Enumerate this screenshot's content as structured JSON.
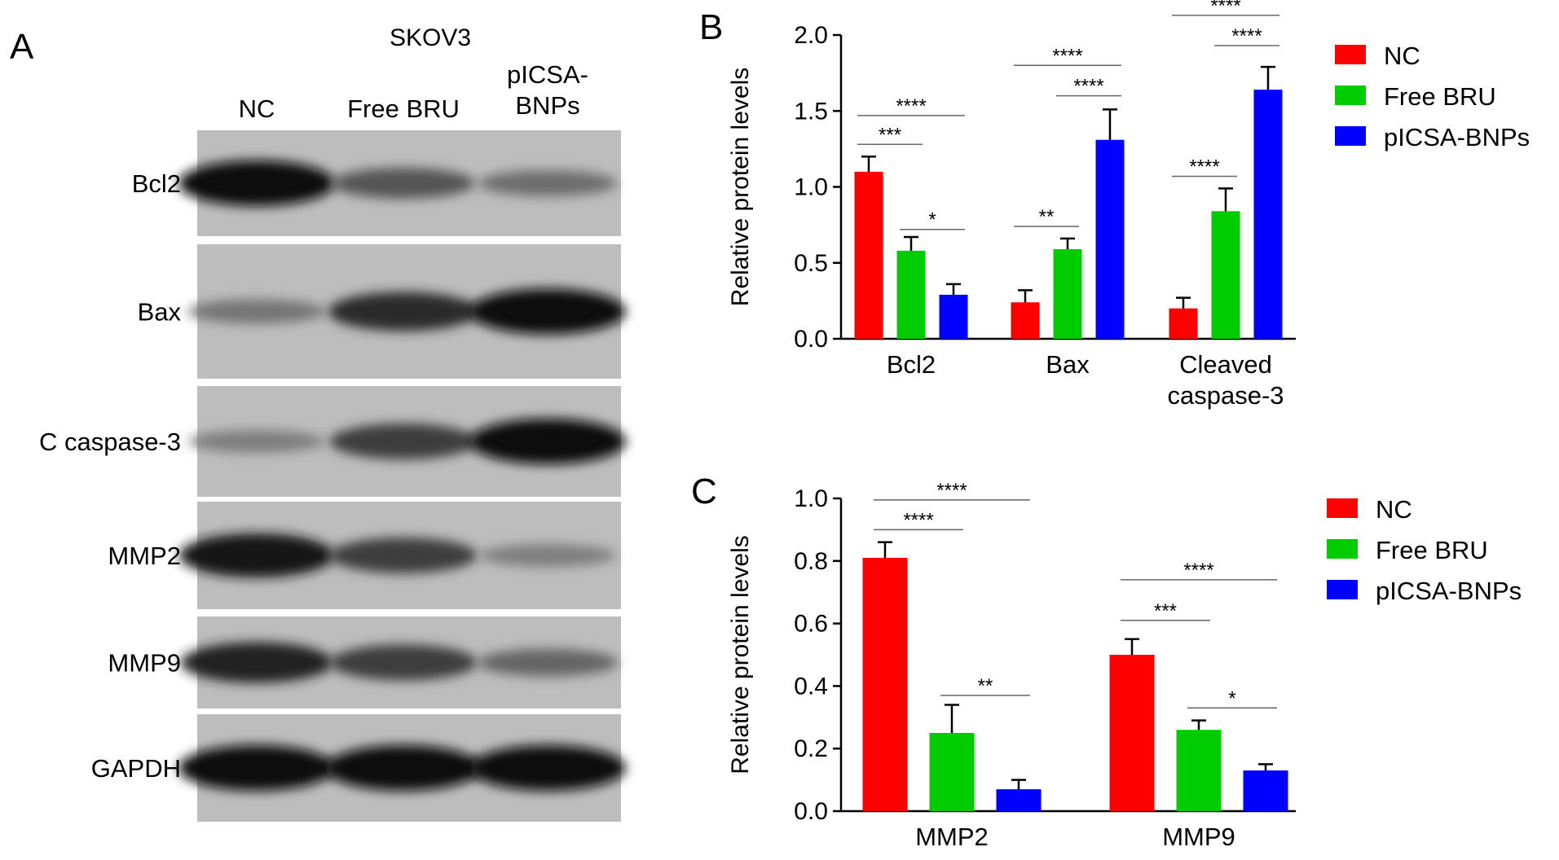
{
  "panel_a": {
    "letter": "A",
    "cell_line": "SKOV3",
    "lanes": [
      "NC",
      "Free BRU",
      "pICSA-\nBNPs"
    ],
    "rows": [
      {
        "label": "Bcl2",
        "intensity": [
          1.0,
          0.55,
          0.4
        ]
      },
      {
        "label": "Bax",
        "intensity": [
          0.35,
          0.8,
          1.0
        ]
      },
      {
        "label": "C caspase-3",
        "intensity": [
          0.3,
          0.7,
          1.0
        ]
      },
      {
        "label": "MMP2",
        "intensity": [
          0.95,
          0.7,
          0.3
        ]
      },
      {
        "label": "MMP9",
        "intensity": [
          0.85,
          0.7,
          0.45
        ]
      },
      {
        "label": "GAPDH",
        "intensity": [
          1.0,
          1.0,
          1.0
        ]
      }
    ]
  },
  "colors": {
    "nc": "#ff0000",
    "free_bru": "#00cc00",
    "picsa": "#0000ff"
  },
  "chart_data": [
    {
      "type": "bar",
      "panel": "B",
      "categories": [
        "Bcl2",
        "Bax",
        "Cleaved\ncaspase-3"
      ],
      "series": [
        {
          "name": "NC",
          "values": [
            1.1,
            0.24,
            0.2
          ],
          "errors": [
            0.1,
            0.08,
            0.07
          ]
        },
        {
          "name": "Free BRU",
          "values": [
            0.58,
            0.59,
            0.84
          ],
          "errors": [
            0.09,
            0.07,
            0.15
          ]
        },
        {
          "name": "pICSA-BNPs",
          "values": [
            0.29,
            1.31,
            1.64
          ],
          "errors": [
            0.07,
            0.2,
            0.15
          ]
        }
      ],
      "ylabel": "Relative protein levels",
      "ylim": [
        0,
        2.0
      ],
      "yticks": [
        "0.0",
        "0.5",
        "1.0",
        "1.5",
        "2.0"
      ],
      "legend": "right",
      "significance": [
        {
          "category": 0,
          "from": 0,
          "to": 2,
          "label": "****",
          "y": 1.47
        },
        {
          "category": 0,
          "from": 0,
          "to": 1,
          "label": "***",
          "y": 1.28
        },
        {
          "category": 0,
          "from": 1,
          "to": 2,
          "label": "*",
          "y": 0.72
        },
        {
          "category": 1,
          "from": 0,
          "to": 2,
          "label": "****",
          "y": 1.8
        },
        {
          "category": 1,
          "from": 1,
          "to": 2,
          "label": "****",
          "y": 1.6
        },
        {
          "category": 1,
          "from": 0,
          "to": 1,
          "label": "**",
          "y": 0.74
        },
        {
          "category": 2,
          "from": 0,
          "to": 2,
          "label": "****",
          "y": 2.13
        },
        {
          "category": 2,
          "from": 1,
          "to": 2,
          "label": "****",
          "y": 1.93
        },
        {
          "category": 2,
          "from": 0,
          "to": 1,
          "label": "****",
          "y": 1.07
        }
      ]
    },
    {
      "type": "bar",
      "panel": "C",
      "categories": [
        "MMP2",
        "MMP9"
      ],
      "series": [
        {
          "name": "NC",
          "values": [
            0.81,
            0.5
          ],
          "errors": [
            0.05,
            0.05
          ]
        },
        {
          "name": "Free BRU",
          "values": [
            0.25,
            0.26
          ],
          "errors": [
            0.09,
            0.03
          ]
        },
        {
          "name": "pICSA-BNPs",
          "values": [
            0.07,
            0.13
          ],
          "errors": [
            0.03,
            0.02
          ]
        }
      ],
      "ylabel": "Relative protein levels",
      "ylim": [
        0,
        1.0
      ],
      "yticks": [
        "0.0",
        "0.2",
        "0.4",
        "0.6",
        "0.8",
        "1.0"
      ],
      "legend": "right",
      "significance": [
        {
          "category": 0,
          "from": 0,
          "to": 2,
          "label": "****",
          "y": 0.995
        },
        {
          "category": 0,
          "from": 0,
          "to": 1,
          "label": "****",
          "y": 0.9
        },
        {
          "category": 0,
          "from": 1,
          "to": 2,
          "label": "**",
          "y": 0.37
        },
        {
          "category": 1,
          "from": 0,
          "to": 2,
          "label": "****",
          "y": 0.74
        },
        {
          "category": 1,
          "from": 0,
          "to": 1,
          "label": "***",
          "y": 0.61
        },
        {
          "category": 1,
          "from": 1,
          "to": 2,
          "label": "*",
          "y": 0.33
        }
      ]
    }
  ]
}
